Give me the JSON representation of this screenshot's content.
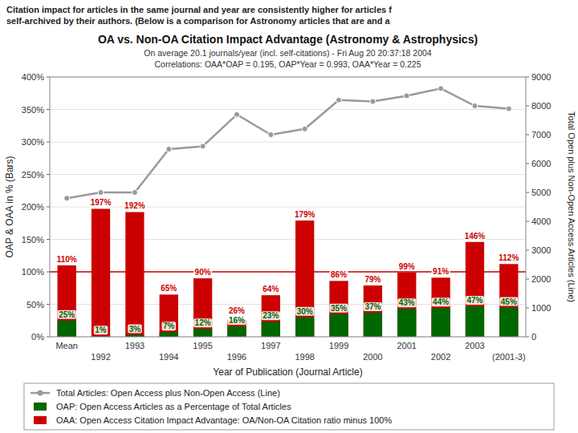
{
  "chart_data": {
    "type": "bar",
    "header": [
      "Citation impact for articles in the same journal and year are consistently higher for articles f",
      "self-archived by their authors. (Below is a comparison for Astronomy articles that are and a"
    ],
    "title": "OA vs. Non-OA Citation Impact Advantage (Astronomy & Astrophysics)",
    "subtitle": [
      "On average 20.1 journals/year (incl. self-citations) - Fri Aug 20 20:37:18 2004",
      "Correlations:  OAA*OAP = 0.195, OAP*Year = 0.993, OAA*Year = 0.225"
    ],
    "xlabel": "Year of Publication (Journal Article)",
    "ylabel": "OAP & OAA in % (Bars)",
    "y2label": "Total Open plus Non-Open Access Articles (Line)",
    "categories": [
      "Mean",
      "1992",
      "1993",
      "1994",
      "1995",
      "1996",
      "1997",
      "1998",
      "1999",
      "2000",
      "2001",
      "2002",
      "2003",
      "(2001-3)"
    ],
    "series": [
      {
        "name": "OAA: Open Access Citation Impact Advantage: OA/Non-OA Citation ratio minus 100%",
        "type": "bar",
        "color": "#cc0000",
        "values": [
          110,
          197,
          192,
          65,
          90,
          26,
          64,
          179,
          86,
          79,
          99,
          91,
          146,
          112
        ],
        "data_labels": true,
        "value_labels": [
          "110%",
          "197%",
          "192%",
          "65%",
          "90%",
          "26%",
          "64%",
          "179%",
          "86%",
          "79%",
          "99%",
          "91%",
          "146%",
          "112%"
        ]
      },
      {
        "name": "OAP: Open Access Articles as a Percentage of Total Articles",
        "type": "bar",
        "color": "#006600",
        "values": [
          25,
          1,
          3,
          7,
          12,
          16,
          23,
          30,
          35,
          37,
          43,
          44,
          47,
          45
        ],
        "data_labels": true,
        "value_labels": [
          "25%",
          "1%",
          "3%",
          "7%",
          "12%",
          "16%",
          "23%",
          "30%",
          "35%",
          "37%",
          "43%",
          "44%",
          "47%",
          "45%"
        ]
      },
      {
        "name": "Total Articles: Open Access plus Non-Open Access (Line)",
        "type": "line",
        "axis": "y2",
        "color": "#999999",
        "marker": "circle",
        "values": [
          4800,
          5000,
          5000,
          6500,
          6600,
          7700,
          7000,
          7200,
          8200,
          8150,
          8350,
          8600,
          8000,
          7900
        ]
      }
    ],
    "hlines": [
      {
        "value": 100,
        "color": "#cc0000"
      }
    ],
    "stacked": false,
    "grid": true,
    "legend": "bottom",
    "ylim": [
      0,
      400
    ],
    "yticks": [
      {
        "value": 0,
        "label": "0%"
      },
      {
        "value": 50,
        "label": "50%"
      },
      {
        "value": 100,
        "label": "100%"
      },
      {
        "value": 150,
        "label": "150%"
      },
      {
        "value": 200,
        "label": "200%"
      },
      {
        "value": 250,
        "label": "250%"
      },
      {
        "value": 300,
        "label": "300%"
      },
      {
        "value": 350,
        "label": "350%"
      },
      {
        "value": 400,
        "label": "400%"
      }
    ],
    "y2lim": [
      0,
      9000
    ],
    "y2ticks": [
      0,
      1000,
      2000,
      3000,
      4000,
      5000,
      6000,
      7000,
      8000,
      9000
    ]
  }
}
